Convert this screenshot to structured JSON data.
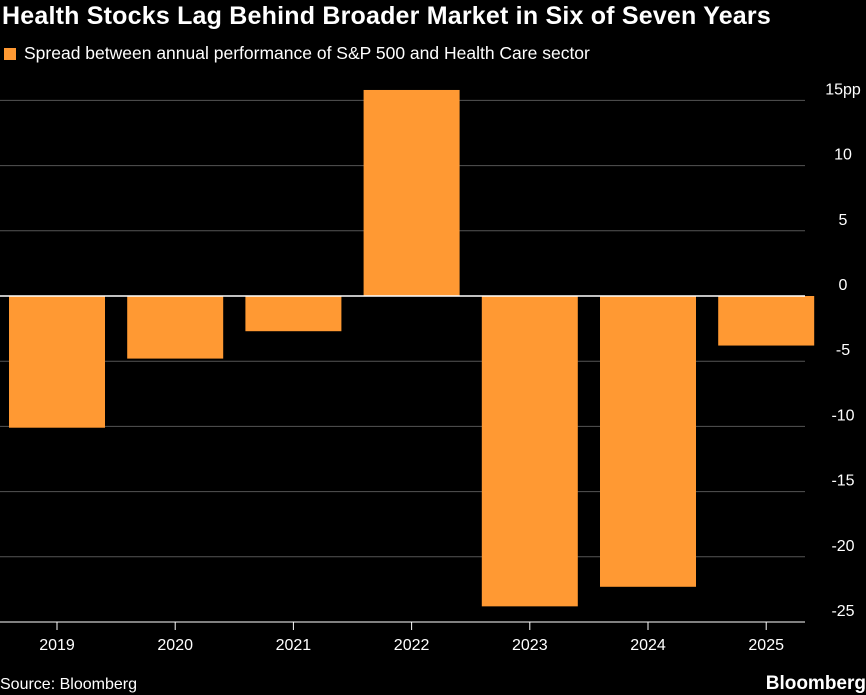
{
  "title": "Health Stocks Lag Behind Broader Market in Six of Seven Years",
  "legend": {
    "label": "Spread between annual performance of S&P 500 and Health Care sector",
    "color": "#ff9933"
  },
  "source": "Source: Bloomberg",
  "brand": "Bloomberg",
  "colors": {
    "background": "#000000",
    "bar": "#ff9933",
    "grid": "#555555",
    "zero_line": "#ffffff",
    "text": "#ffffff"
  },
  "chart_data": {
    "type": "bar",
    "title": "Health Stocks Lag Behind Broader Market in Six of Seven Years",
    "xlabel": "",
    "ylabel": "",
    "categories": [
      "2019",
      "2020",
      "2021",
      "2022",
      "2023",
      "2024",
      "2025"
    ],
    "series": [
      {
        "name": "Spread between annual performance of S&P 500 and Health Care sector",
        "values": [
          -10.1,
          -4.8,
          -2.7,
          15.8,
          -23.8,
          -22.3,
          -3.8
        ]
      }
    ],
    "ylim": [
      -26,
      16
    ],
    "yticks": [
      15,
      10,
      5,
      0,
      -5,
      -10,
      -15,
      -20,
      -25
    ],
    "ytick_labels": [
      "15pp",
      "10",
      "5",
      "0",
      "-5",
      "-10",
      "-15",
      "-20",
      "-25"
    ],
    "grid": true,
    "legend_position": "top-left"
  }
}
